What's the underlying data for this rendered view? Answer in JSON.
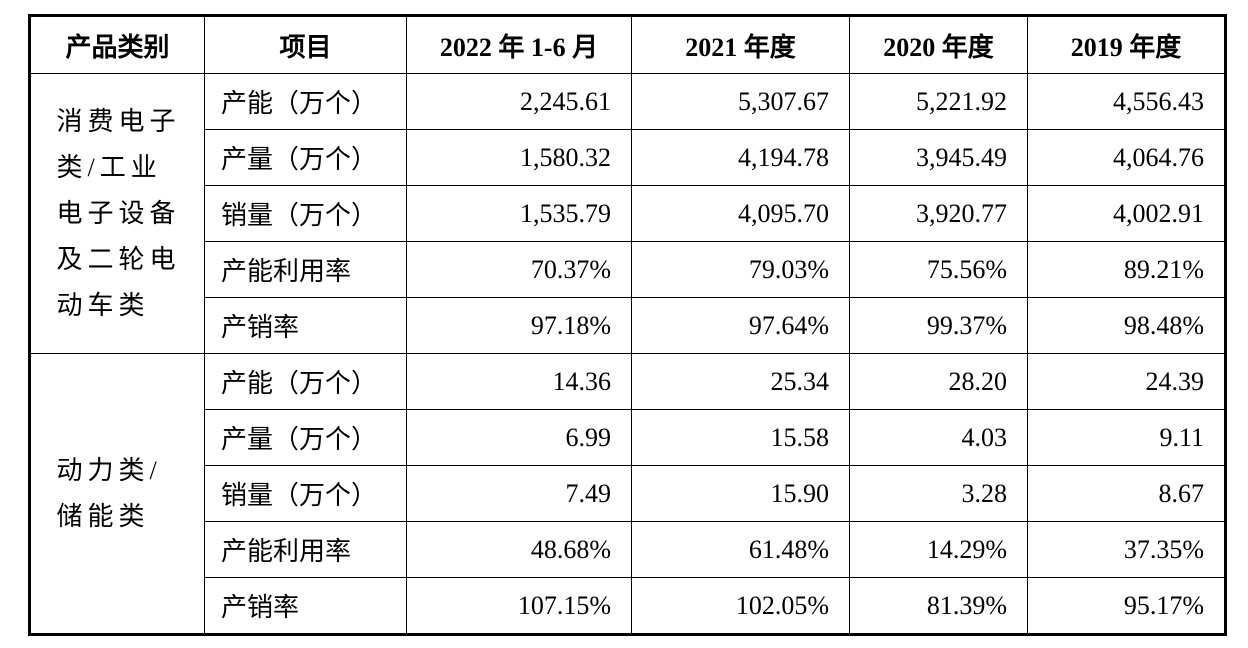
{
  "table": {
    "header": [
      "产品类别",
      "项目",
      "2022 年 1-6 月",
      "2021 年度",
      "2020 年度",
      "2019 年度"
    ],
    "groups": [
      {
        "category": "消费电子类/工业电子设备及二轮电动车类",
        "rows": [
          [
            "产能（万个）",
            "2,245.61",
            "5,307.67",
            "5,221.92",
            "4,556.43"
          ],
          [
            "产量（万个）",
            "1,580.32",
            "4,194.78",
            "3,945.49",
            "4,064.76"
          ],
          [
            "销量（万个）",
            "1,535.79",
            "4,095.70",
            "3,920.77",
            "4,002.91"
          ],
          [
            "产能利用率",
            "70.37%",
            "79.03%",
            "75.56%",
            "89.21%"
          ],
          [
            "产销率",
            "97.18%",
            "97.64%",
            "99.37%",
            "98.48%"
          ]
        ]
      },
      {
        "category": "动力类/储能类",
        "rows": [
          [
            "产能（万个）",
            "14.36",
            "25.34",
            "28.20",
            "24.39"
          ],
          [
            "产量（万个）",
            "6.99",
            "15.58",
            "4.03",
            "9.11"
          ],
          [
            "销量（万个）",
            "7.49",
            "15.90",
            "3.28",
            "8.67"
          ],
          [
            "产能利用率",
            "48.68%",
            "61.48%",
            "14.29%",
            "37.35%"
          ],
          [
            "产销率",
            "107.15%",
            "102.05%",
            "81.39%",
            "95.17%"
          ]
        ]
      }
    ]
  }
}
